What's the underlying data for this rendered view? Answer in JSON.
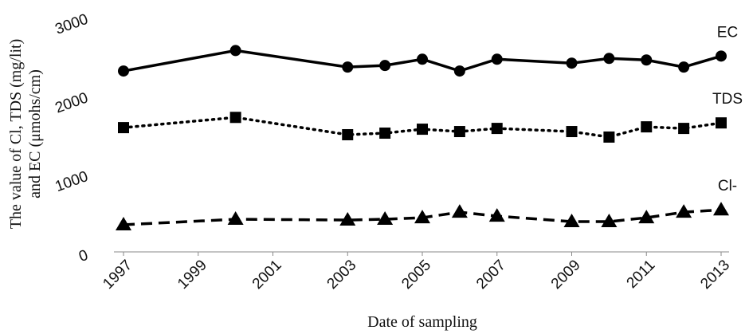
{
  "chart_data": {
    "type": "line",
    "xlabel": "Date of sampling",
    "ylabel": [
      "The value of Cl, TDS (mg/lit)",
      "and EC (μmohs/cm)"
    ],
    "x": [
      1997,
      2000,
      2003,
      2004,
      2005,
      2006,
      2007,
      2009,
      2010,
      2011,
      2012,
      2013
    ],
    "xlim": [
      1997,
      2013
    ],
    "xticks": [
      1997,
      1999,
      2001,
      2003,
      2005,
      2007,
      2009,
      2011,
      2013
    ],
    "ylim": [
      0,
      3000
    ],
    "yticks": [
      0,
      1000,
      2000,
      3000
    ],
    "series": [
      {
        "name": "EC",
        "color": "#000000",
        "dash": "solid",
        "marker": "circle",
        "values": [
          2300,
          2560,
          2350,
          2370,
          2450,
          2300,
          2450,
          2400,
          2460,
          2440,
          2350,
          2490
        ]
      },
      {
        "name": "TDS",
        "color": "#000000",
        "dash": "dotted",
        "marker": "square",
        "values": [
          1580,
          1710,
          1490,
          1510,
          1560,
          1530,
          1570,
          1530,
          1460,
          1590,
          1570,
          1640
        ]
      },
      {
        "name": "Cl-",
        "color": "#000000",
        "dash": "dashed",
        "marker": "triangle",
        "values": [
          345,
          415,
          405,
          415,
          435,
          505,
          455,
          385,
          385,
          435,
          505,
          535
        ]
      }
    ]
  }
}
